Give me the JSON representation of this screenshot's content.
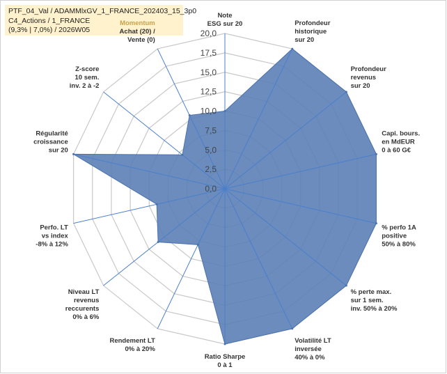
{
  "info": {
    "line1": "PTF_04_Val / ADAMMlxGV_1_FRANCE_202403_15_3p0",
    "line2": "C4_Actions / 1_FRANCE",
    "line3": "(9,3% | 7,0%) / 2026W05"
  },
  "colors": {
    "fill": "#5b80b6",
    "stroke": "#4a72ad",
    "grid": "#c8c8c8",
    "spoke": "#4a7fcc",
    "infoBox": "#fff2cc",
    "highlightLabel": "#c9a24a"
  },
  "chart_data": {
    "type": "radar",
    "title": "",
    "rmin": 0,
    "rmax": 20,
    "tick_step": 2.5,
    "tick_labels": [
      "0,0",
      "2,5",
      "5,0",
      "7,5",
      "10,0",
      "12,5",
      "15,0",
      "17,5",
      "20,0"
    ],
    "axes": [
      {
        "label": [
          "Note",
          "ESG sur 20"
        ],
        "value": 10.0
      },
      {
        "label": [
          "Profondeur",
          "historique",
          "sur 20"
        ],
        "value": 20.0
      },
      {
        "label": [
          "Profondeur",
          "revenus",
          "sur 20"
        ],
        "value": 20.0
      },
      {
        "label": [
          "Capi. bours.",
          "en MdEUR",
          "0 à 60 G€"
        ],
        "value": 20.0
      },
      {
        "label": [
          "% perfo 1A",
          "positive",
          "50% à 80%"
        ],
        "value": 20.0
      },
      {
        "label": [
          "% perte max.",
          "sur 1 sem.",
          "inv. 50% à 20%"
        ],
        "value": 20.0
      },
      {
        "label": [
          "Volatilité LT",
          "inversée",
          "40% à 0%"
        ],
        "value": 20.0
      },
      {
        "label": [
          "Ratio Sharpe",
          "0 à 1"
        ],
        "value": 20.0
      },
      {
        "label": [
          "Rendement LT",
          "0% à 20%"
        ],
        "value": 8.0
      },
      {
        "label": [
          "Niveau LT",
          "revenus",
          "reccurents",
          "0% à 6%"
        ],
        "value": 11.0
      },
      {
        "label": [
          "Perfo. LT",
          "vs index",
          "-8% à 12%"
        ],
        "value": 9.0
      },
      {
        "label": [
          "Régularité",
          "croissance",
          "sur 20"
        ],
        "value": 20.0
      },
      {
        "label": [
          "Z-score",
          "10 sem.",
          "inv. 2 à -2"
        ],
        "value": 7.0
      },
      {
        "label": [
          "Momentum",
          "Achat (20) /",
          "Vente (0)"
        ],
        "value": 10.5,
        "highlight_first_line": true
      }
    ]
  }
}
